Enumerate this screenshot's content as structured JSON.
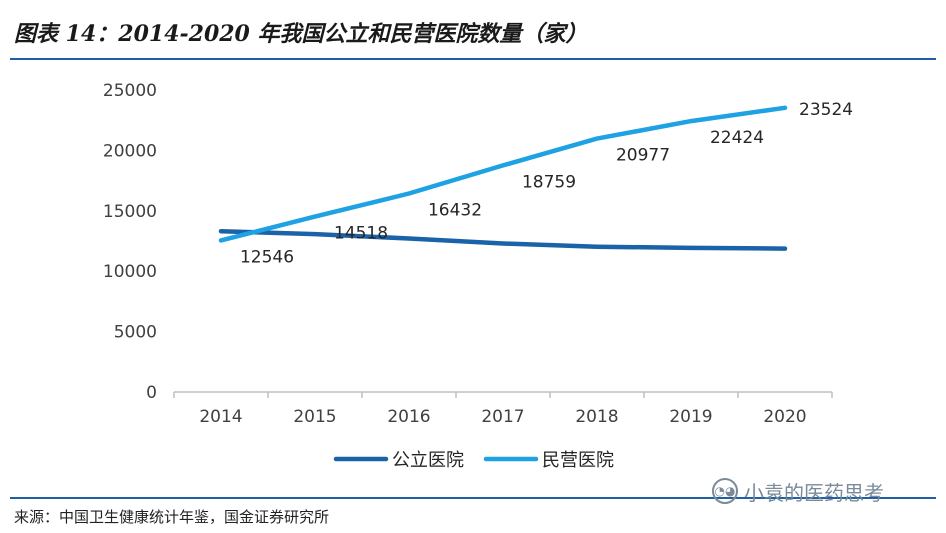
{
  "header": {
    "title": "图表 14：2014-2020 年我国公立和民营医院数量（家）"
  },
  "footer": {
    "source": "来源：中国卫生健康统计年鉴，国金证券研究所"
  },
  "watermark": {
    "text": "小袁的医药思考",
    "icon": "wechat-icon"
  },
  "chart_data": {
    "type": "line",
    "x": [
      "2014",
      "2015",
      "2016",
      "2017",
      "2018",
      "2019",
      "2020"
    ],
    "ylim": [
      0,
      25000
    ],
    "yticks": [
      0,
      5000,
      10000,
      15000,
      20000,
      25000
    ],
    "grid": false,
    "legend": "bottom",
    "series": [
      {
        "name": "公立医院",
        "color": "#1b63a9",
        "values": [
          13314,
          13069,
          12708,
          12297,
          12032,
          11930,
          11870
        ],
        "labels": [
          null,
          null,
          null,
          null,
          null,
          null,
          null
        ]
      },
      {
        "name": "民营医院",
        "color": "#1fa2e3",
        "values": [
          12546,
          14518,
          16432,
          18759,
          20977,
          22424,
          23524
        ],
        "labels": [
          "12546",
          "14518",
          "16432",
          "18759",
          "20977",
          "22424",
          "23524"
        ]
      }
    ]
  }
}
